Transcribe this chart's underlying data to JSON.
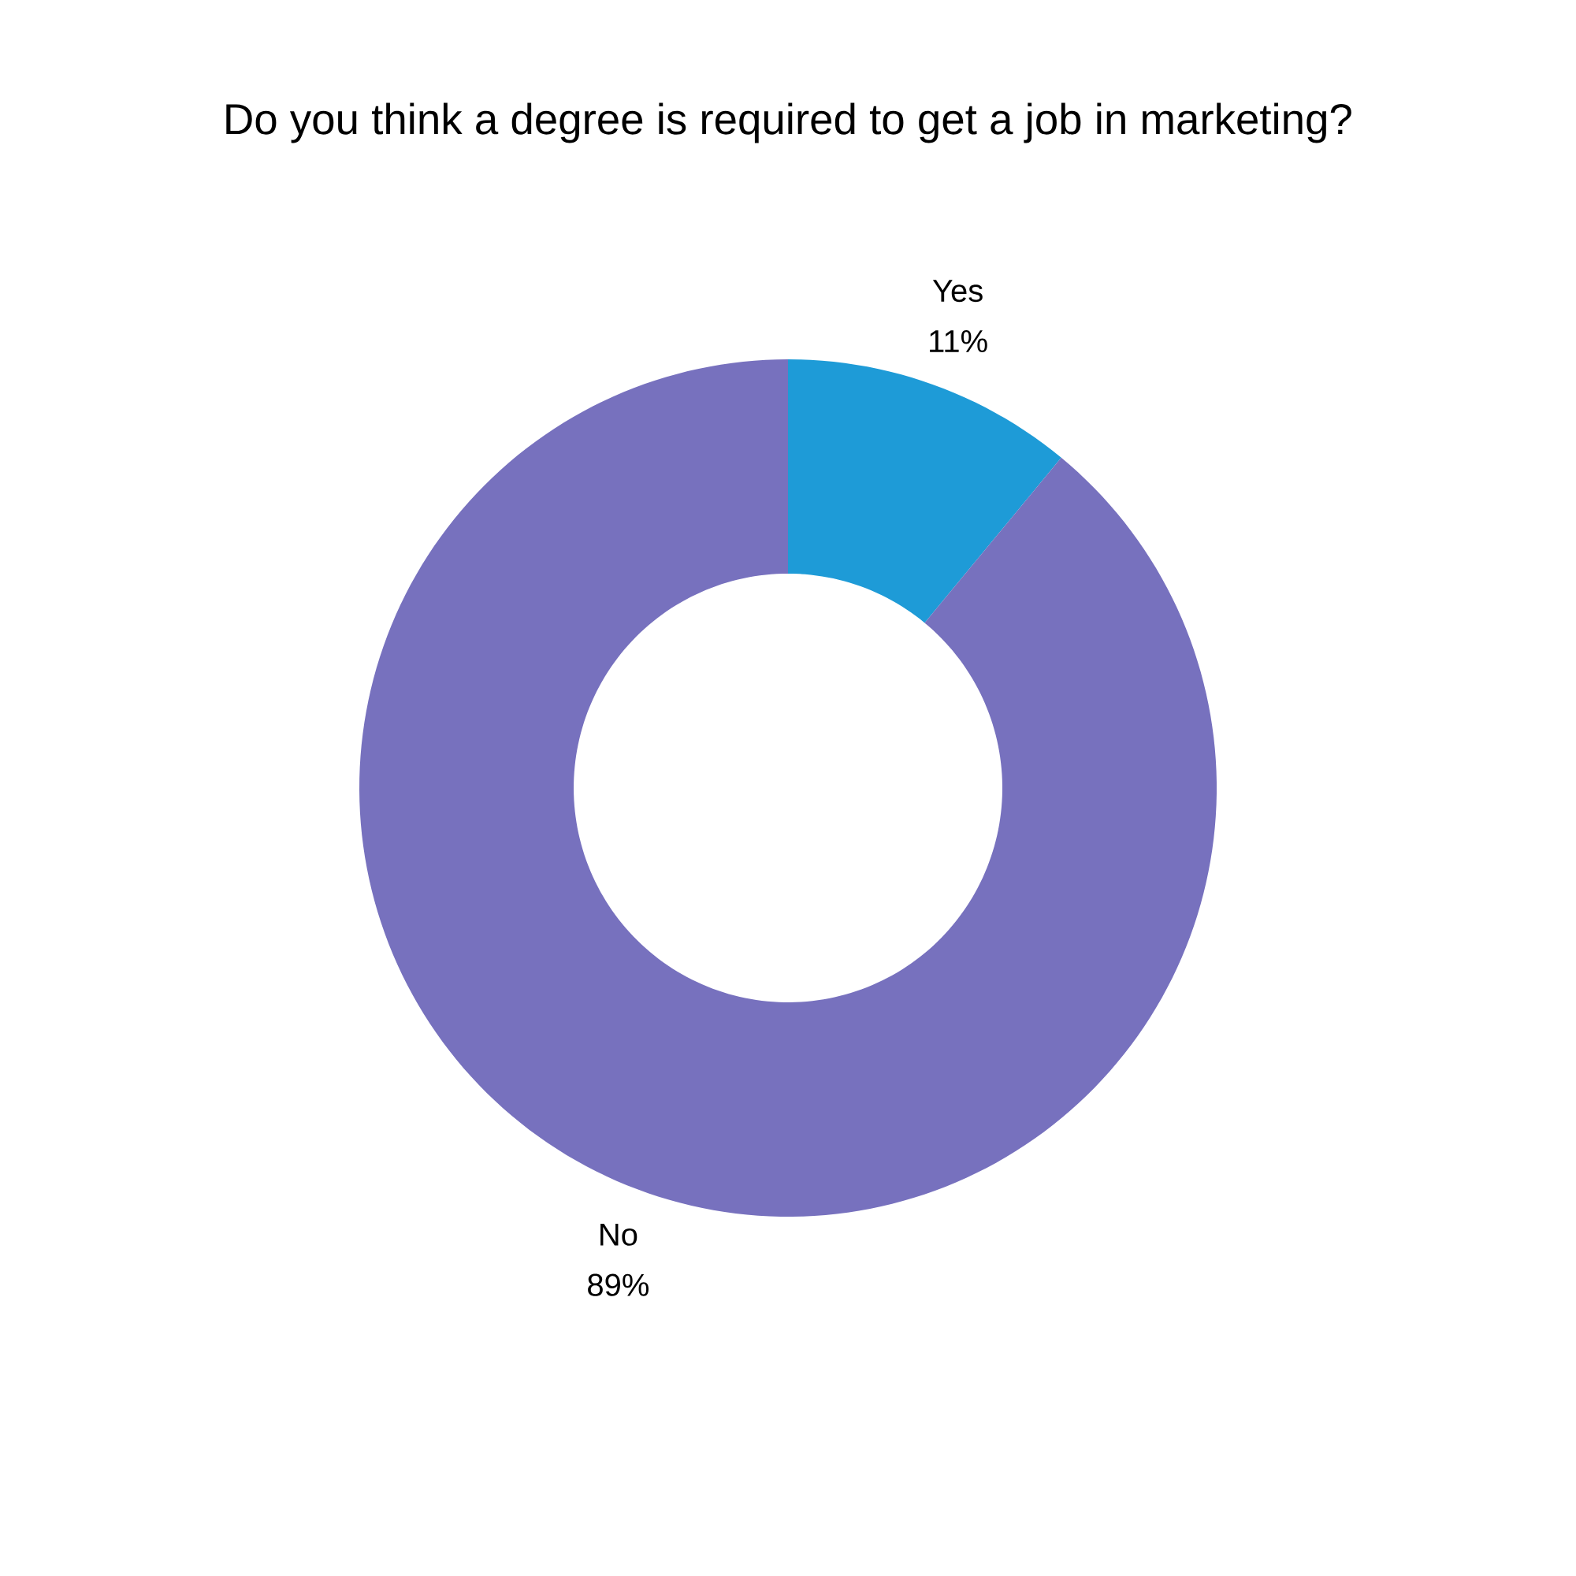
{
  "chart_data": {
    "type": "donut",
    "title": "Do you think a degree is required to get a job in marketing?",
    "categories": [
      "Yes",
      "No"
    ],
    "values": [
      11,
      89
    ],
    "value_labels": [
      "11%",
      "89%"
    ],
    "colors": [
      "#1e9bd7",
      "#7771be"
    ]
  }
}
